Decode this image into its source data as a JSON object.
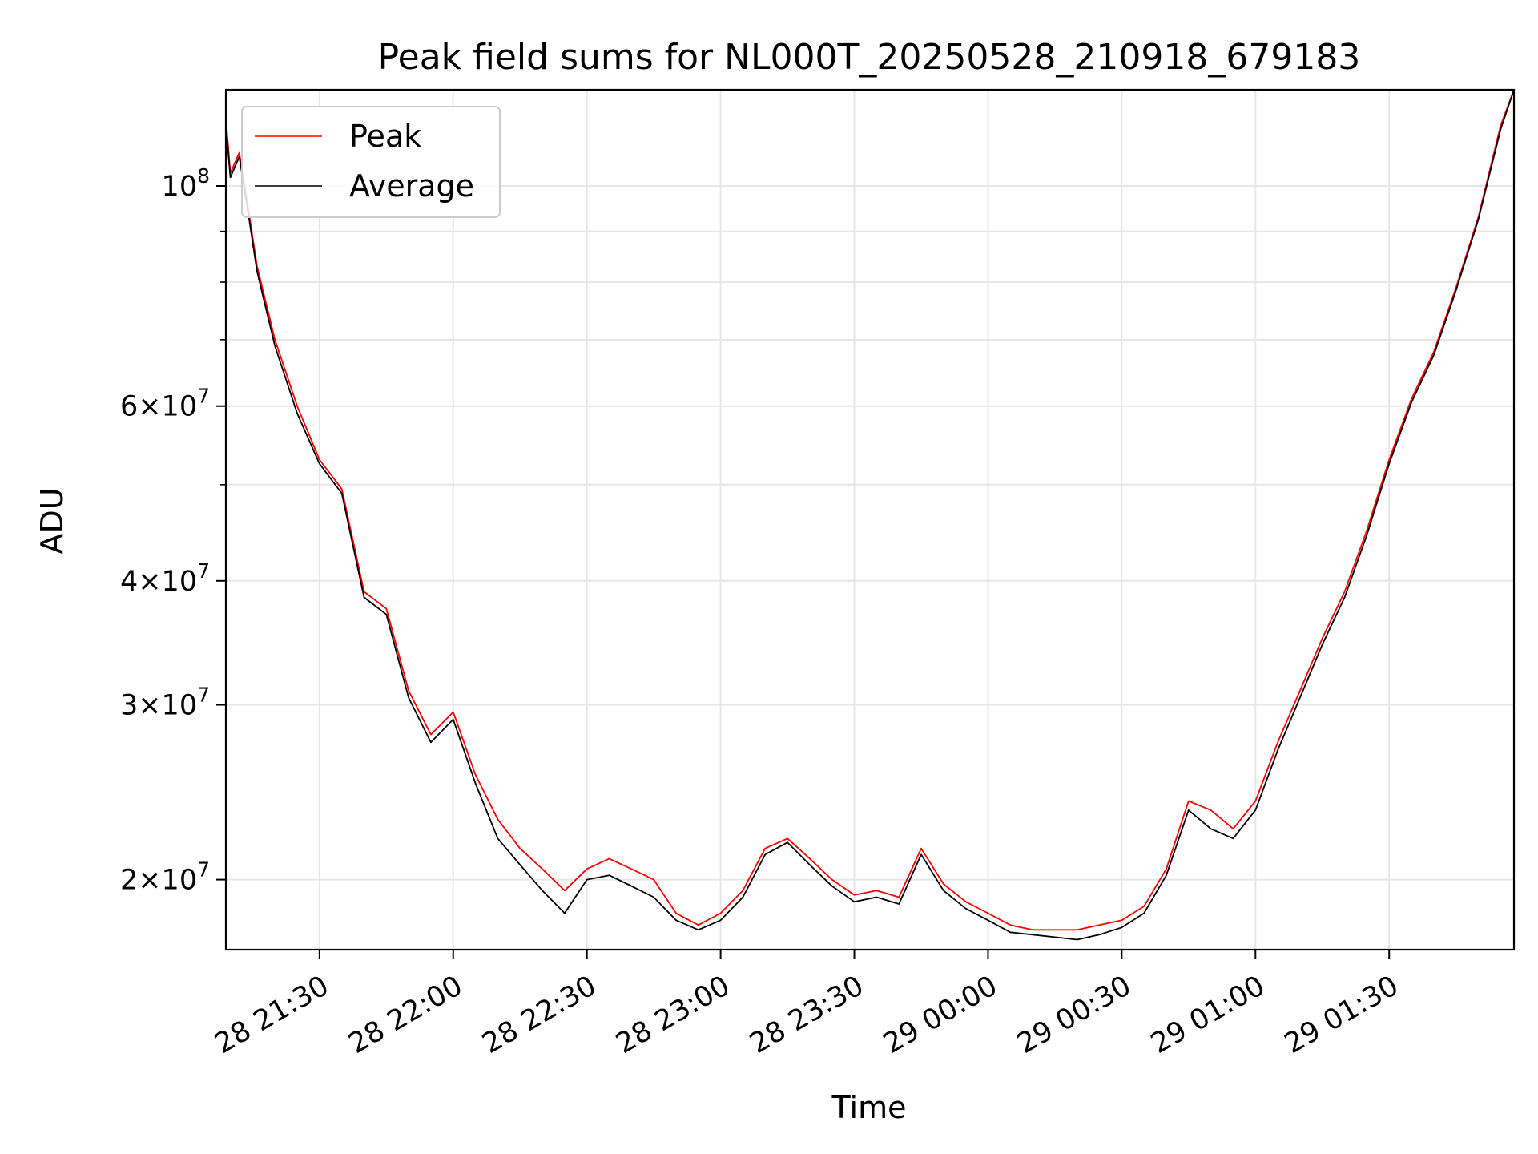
{
  "chart_data": {
    "type": "line",
    "title": "Peak field sums for NL000T_20250528_210918_679183",
    "xlabel": "Time",
    "ylabel": "ADU",
    "y_scale": "log",
    "grid": true,
    "legend_position": "top-left",
    "xlim": [
      "2025-05-28 21:09",
      "2025-05-29 01:58"
    ],
    "ylim": [
      17000000,
      125000000
    ],
    "x_ticks": [
      "28 21:30",
      "28 22:00",
      "28 22:30",
      "28 23:00",
      "28 23:30",
      "29 00:00",
      "29 00:30",
      "29 01:00",
      "29 01:30"
    ],
    "y_ticks": [
      {
        "value": 100000000,
        "base": "10",
        "exp": "8",
        "mult": ""
      },
      {
        "value": 60000000,
        "base": "10",
        "exp": "7",
        "mult": "6×"
      },
      {
        "value": 40000000,
        "base": "10",
        "exp": "7",
        "mult": "4×"
      },
      {
        "value": 30000000,
        "base": "10",
        "exp": "7",
        "mult": "3×"
      },
      {
        "value": 20000000,
        "base": "10",
        "exp": "7",
        "mult": "2×"
      }
    ],
    "x": [
      "21:09",
      "21:10",
      "21:12",
      "21:14",
      "21:16",
      "21:20",
      "21:25",
      "21:30",
      "21:35",
      "21:40",
      "21:45",
      "21:50",
      "21:55",
      "22:00",
      "22:05",
      "22:10",
      "22:15",
      "22:20",
      "22:25",
      "22:30",
      "22:35",
      "22:40",
      "22:45",
      "22:50",
      "22:55",
      "23:00",
      "23:05",
      "23:10",
      "23:15",
      "23:20",
      "23:25",
      "23:30",
      "23:35",
      "23:40",
      "23:45",
      "23:50",
      "23:55",
      "00:00",
      "00:05",
      "00:10",
      "00:15",
      "00:20",
      "00:25",
      "00:30",
      "00:35",
      "00:40",
      "00:45",
      "00:50",
      "00:55",
      "01:00",
      "01:05",
      "01:10",
      "01:15",
      "01:20",
      "01:25",
      "01:30",
      "01:35",
      "01:40",
      "01:45",
      "01:50",
      "01:55",
      "01:58"
    ],
    "series": [
      {
        "name": "Peak",
        "color": "#ff0000",
        "values": [
          117000000.0,
          103000000.0,
          108000000.0,
          95000000.0,
          83000000.0,
          70000000.0,
          60000000.0,
          53000000.0,
          49500000.0,
          39000000.0,
          37500000.0,
          31000000.0,
          28000000.0,
          29500000.0,
          25500000.0,
          23000000.0,
          21500000.0,
          20500000.0,
          19500000.0,
          20500000.0,
          21000000.0,
          20500000.0,
          20000000.0,
          18500000.0,
          18000000.0,
          18500000.0,
          19500000.0,
          21500000.0,
          22000000.0,
          21000000.0,
          20000000.0,
          19300000.0,
          19500000.0,
          19200000.0,
          21500000.0,
          19800000.0,
          19000000.0,
          18500000.0,
          18000000.0,
          17800000.0,
          17800000.0,
          17800000.0,
          18000000.0,
          18200000.0,
          18800000.0,
          20500000.0,
          24000000.0,
          23500000.0,
          22500000.0,
          24000000.0,
          27500000.0,
          31000000.0,
          35000000.0,
          39000000.0,
          45000000.0,
          53000000.0,
          61000000.0,
          68000000.0,
          79000000.0,
          93000000.0,
          115000000.0,
          125000000.0
        ]
      },
      {
        "name": "Average",
        "color": "#000000",
        "values": [
          115000000.0,
          102000000.0,
          107000000.0,
          94000000.0,
          82000000.0,
          69000000.0,
          59000000.0,
          52500000.0,
          49000000.0,
          38500000.0,
          37000000.0,
          30500000.0,
          27500000.0,
          29000000.0,
          25000000.0,
          22000000.0,
          20700000.0,
          19500000.0,
          18500000.0,
          20000000.0,
          20200000.0,
          19700000.0,
          19200000.0,
          18200000.0,
          17800000.0,
          18200000.0,
          19200000.0,
          21200000.0,
          21800000.0,
          20700000.0,
          19700000.0,
          19000000.0,
          19200000.0,
          18900000.0,
          21200000.0,
          19500000.0,
          18700000.0,
          18200000.0,
          17700000.0,
          17600000.0,
          17500000.0,
          17400000.0,
          17600000.0,
          17900000.0,
          18500000.0,
          20200000.0,
          23500000.0,
          22500000.0,
          22000000.0,
          23500000.0,
          27000000.0,
          30500000.0,
          34500000.0,
          38500000.0,
          44500000.0,
          52500000.0,
          60500000.0,
          67500000.0,
          78500000.0,
          92500000.0,
          114000000.0,
          125000000.0
        ]
      }
    ]
  }
}
